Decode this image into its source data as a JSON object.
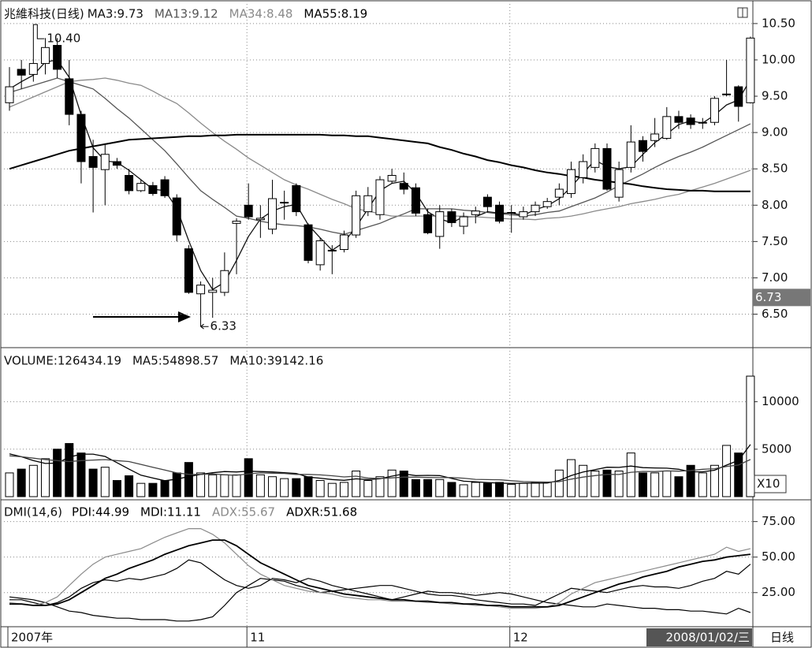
{
  "chart_data": [
    {
      "type": "candlestick",
      "title": "兆維科技(日线)",
      "period": "日线",
      "categories": [
        "2007年",
        null,
        null,
        null,
        null,
        null,
        null,
        null,
        null,
        null,
        null,
        null,
        null,
        null,
        null,
        null,
        null,
        null,
        null,
        null,
        "11",
        null,
        null,
        null,
        null,
        null,
        null,
        null,
        null,
        null,
        null,
        null,
        null,
        null,
        null,
        null,
        null,
        null,
        null,
        null,
        null,
        null,
        "12",
        null,
        null,
        null,
        null,
        null,
        null,
        null,
        null,
        null,
        null,
        null,
        null,
        null,
        null,
        null,
        null,
        null,
        null,
        null,
        "2008/01/02/三"
      ],
      "open": [
        9.41,
        9.87,
        9.8,
        9.95,
        10.2,
        9.74,
        9.25,
        8.67,
        8.49,
        8.6,
        8.41,
        8.2,
        8.27,
        8.35,
        8.1,
        7.4,
        6.78,
        6.8,
        6.8,
        7.75,
        8.0,
        7.8,
        7.67,
        8.03,
        8.27,
        7.73,
        7.18,
        7.37,
        7.39,
        7.59,
        7.91,
        7.87,
        8.33,
        8.3,
        8.24,
        7.87,
        7.57,
        7.91,
        7.71,
        7.87,
        8.11,
        8.0,
        7.89,
        7.84,
        7.91,
        7.98,
        8.11,
        8.16,
        8.38,
        8.52,
        8.78,
        8.11,
        8.52,
        8.89,
        8.89,
        8.92,
        9.22,
        9.2,
        9.13,
        9.14,
        9.52,
        9.63,
        9.41
      ],
      "high": [
        9.9,
        10.0,
        10.4,
        10.3,
        10.3,
        10.0,
        9.3,
        8.9,
        8.85,
        8.65,
        8.5,
        8.35,
        8.32,
        8.4,
        8.15,
        7.45,
        6.95,
        7.0,
        7.35,
        7.82,
        8.3,
        8.0,
        8.35,
        8.2,
        8.3,
        7.75,
        7.55,
        7.45,
        7.65,
        8.2,
        8.25,
        8.4,
        8.5,
        8.45,
        8.3,
        7.95,
        8.0,
        7.95,
        7.9,
        7.98,
        8.15,
        8.05,
        8.0,
        7.98,
        8.05,
        8.1,
        8.3,
        8.6,
        8.7,
        8.85,
        8.85,
        8.6,
        9.1,
        8.95,
        9.2,
        9.35,
        9.3,
        9.25,
        9.2,
        9.5,
        10.0,
        9.65,
        10.32
      ],
      "low": [
        9.3,
        9.6,
        9.7,
        9.8,
        9.75,
        9.1,
        8.3,
        7.9,
        8.0,
        8.5,
        8.15,
        8.18,
        8.13,
        8.1,
        7.5,
        6.78,
        6.33,
        6.45,
        6.75,
        7.05,
        7.8,
        7.55,
        7.6,
        7.8,
        7.85,
        7.2,
        7.1,
        7.05,
        7.35,
        7.55,
        7.85,
        7.8,
        8.3,
        8.15,
        7.85,
        7.6,
        7.4,
        7.7,
        7.6,
        7.75,
        7.9,
        7.75,
        7.62,
        7.8,
        7.85,
        7.95,
        8.0,
        8.1,
        8.3,
        8.45,
        8.2,
        8.05,
        8.45,
        8.6,
        8.8,
        8.9,
        9.05,
        9.05,
        9.05,
        9.1,
        9.5,
        9.15,
        9.4
      ],
      "close": [
        9.63,
        9.79,
        9.95,
        10.17,
        9.87,
        9.25,
        8.6,
        8.52,
        8.7,
        8.55,
        8.2,
        8.3,
        8.16,
        8.13,
        7.59,
        6.8,
        6.9,
        6.83,
        7.1,
        7.78,
        7.84,
        7.82,
        8.09,
        8.04,
        7.91,
        7.24,
        7.51,
        7.38,
        7.59,
        8.13,
        8.13,
        8.35,
        8.41,
        8.22,
        7.89,
        7.62,
        7.91,
        7.76,
        7.84,
        7.92,
        7.98,
        7.78,
        7.9,
        7.91,
        8.0,
        8.05,
        8.22,
        8.49,
        8.6,
        8.78,
        8.22,
        8.49,
        8.87,
        8.74,
        8.98,
        9.22,
        9.14,
        9.11,
        9.14,
        9.47,
        9.53,
        9.36,
        10.3
      ],
      "up_color": "#ffffff",
      "down_color": "#000000",
      "series": [
        {
          "name": "MA3:9.73",
          "color": "#111111",
          "values": [
            9.6,
            9.7,
            9.79,
            9.97,
            10.0,
            9.76,
            9.24,
            8.79,
            8.61,
            8.59,
            8.48,
            8.35,
            8.22,
            8.2,
            7.96,
            7.51,
            7.1,
            6.84,
            6.94,
            7.24,
            7.57,
            7.81,
            7.92,
            7.98,
            8.01,
            7.73,
            7.55,
            7.38,
            7.49,
            7.7,
            7.95,
            8.2,
            8.3,
            8.33,
            8.17,
            7.91,
            7.81,
            7.76,
            7.84,
            7.84,
            7.91,
            7.89,
            7.89,
            7.86,
            7.94,
            7.99,
            8.09,
            8.25,
            8.44,
            8.62,
            8.53,
            8.5,
            8.53,
            8.7,
            8.86,
            8.98,
            9.11,
            9.16,
            9.13,
            9.24,
            9.38,
            9.45,
            9.73
          ]
        },
        {
          "name": "MA13:9.12",
          "color": "#555555",
          "values": [
            9.55,
            9.6,
            9.65,
            9.7,
            9.75,
            9.7,
            9.65,
            9.6,
            9.47,
            9.33,
            9.2,
            9.05,
            8.9,
            8.75,
            8.57,
            8.38,
            8.2,
            8.08,
            7.97,
            7.85,
            7.82,
            7.78,
            7.75,
            7.73,
            7.72,
            7.7,
            7.67,
            7.63,
            7.6,
            7.65,
            7.7,
            7.75,
            7.82,
            7.88,
            7.95,
            7.95,
            7.95,
            7.95,
            7.93,
            7.92,
            7.9,
            7.88,
            7.87,
            7.85,
            7.87,
            7.9,
            7.92,
            7.98,
            8.04,
            8.1,
            8.18,
            8.27,
            8.35,
            8.43,
            8.52,
            8.6,
            8.67,
            8.73,
            8.8,
            8.88,
            8.96,
            9.04,
            9.12
          ]
        },
        {
          "name": "MA34:8.48",
          "color": "#8a8a8a",
          "values": [
            9.35,
            9.42,
            9.49,
            9.56,
            9.63,
            9.7,
            9.72,
            9.73,
            9.75,
            9.72,
            9.68,
            9.65,
            9.57,
            9.48,
            9.4,
            9.27,
            9.13,
            9.0,
            8.88,
            8.77,
            8.65,
            8.55,
            8.45,
            8.35,
            8.28,
            8.22,
            8.15,
            8.08,
            8.02,
            7.95,
            7.92,
            7.88,
            7.85,
            7.85,
            7.85,
            7.85,
            7.85,
            7.85,
            7.85,
            7.84,
            7.83,
            7.82,
            7.81,
            7.81,
            7.8,
            7.82,
            7.83,
            7.85,
            7.88,
            7.92,
            7.95,
            7.98,
            8.02,
            8.05,
            8.08,
            8.12,
            8.15,
            8.2,
            8.25,
            8.3,
            8.36,
            8.42,
            8.48
          ]
        },
        {
          "name": "MA55:8.19",
          "color": "#000000",
          "values": [
            8.5,
            8.55,
            8.6,
            8.65,
            8.7,
            8.75,
            8.78,
            8.81,
            8.84,
            8.87,
            8.9,
            8.91,
            8.92,
            8.93,
            8.94,
            8.95,
            8.95,
            8.96,
            8.96,
            8.97,
            8.97,
            8.97,
            8.97,
            8.97,
            8.97,
            8.97,
            8.97,
            8.96,
            8.96,
            8.95,
            8.95,
            8.93,
            8.91,
            8.89,
            8.87,
            8.85,
            8.8,
            8.76,
            8.71,
            8.67,
            8.62,
            8.59,
            8.55,
            8.52,
            8.48,
            8.45,
            8.43,
            8.4,
            8.38,
            8.35,
            8.33,
            8.31,
            8.29,
            8.26,
            8.24,
            8.22,
            8.21,
            8.2,
            8.2,
            8.19,
            8.19,
            8.19,
            8.19
          ]
        }
      ],
      "annotations": [
        {
          "value": 10.4,
          "label": "10.40"
        },
        {
          "value": 6.33,
          "label": "6.33"
        }
      ],
      "price_marker": {
        "value": 6.73,
        "label": "6.73"
      },
      "ylim": [
        6.05,
        10.77
      ],
      "yticks": [
        {
          "value": 6.5,
          "label": "6.50"
        },
        {
          "value": 7.0,
          "label": "7.00"
        },
        {
          "value": 7.5,
          "label": "7.50"
        },
        {
          "value": 8.0,
          "label": "8.00"
        },
        {
          "value": 8.5,
          "label": "8.50"
        },
        {
          "value": 9.0,
          "label": "9.00"
        },
        {
          "value": 9.5,
          "label": "9.50"
        },
        {
          "value": 10.0,
          "label": "10.00"
        },
        {
          "value": 10.5,
          "label": "10.50"
        }
      ],
      "grid": true
    },
    {
      "type": "bar",
      "unit_label": "X10",
      "values": [
        2500,
        2900,
        3300,
        4000,
        5000,
        5600,
        4600,
        2900,
        3100,
        1700,
        2200,
        1400,
        1400,
        1700,
        2500,
        3600,
        2500,
        2300,
        2300,
        2300,
        4000,
        2300,
        2100,
        1900,
        1900,
        2100,
        1700,
        1400,
        1500,
        2700,
        1700,
        2100,
        2800,
        2700,
        1800,
        1800,
        1800,
        1500,
        1250,
        1500,
        1400,
        1500,
        1300,
        1400,
        1500,
        1500,
        2800,
        3900,
        3300,
        2700,
        2800,
        2700,
        4600,
        2500,
        2500,
        2700,
        2100,
        3300,
        2500,
        3300,
        5400,
        4600,
        12700
      ],
      "value_name": "VOLUME:126434.19",
      "series": [
        {
          "name": "MA5:54898.57",
          "color": "#000000",
          "values": [
            4500,
            4200,
            3800,
            3500,
            3540,
            4160,
            4480,
            4480,
            4240,
            3580,
            2900,
            2260,
            1960,
            1680,
            1840,
            2120,
            2340,
            2520,
            2640,
            2600,
            2680,
            2640,
            2600,
            2520,
            2440,
            2060,
            1940,
            1800,
            1720,
            1880,
            1800,
            1880,
            2160,
            2400,
            2220,
            2240,
            2220,
            1920,
            1630,
            1570,
            1490,
            1430,
            1390,
            1420,
            1420,
            1440,
            1700,
            2220,
            2600,
            2840,
            3100,
            3080,
            3220,
            3060,
            3020,
            3000,
            2880,
            2620,
            2620,
            2780,
            3320,
            3820,
            5490
          ]
        },
        {
          "name": "MA10:39142.16",
          "color": "#444444",
          "values": [
            4300,
            4200,
            4050,
            3900,
            3800,
            3700,
            3800,
            3850,
            3900,
            3800,
            3700,
            3400,
            3100,
            2800,
            2500,
            2350,
            2340,
            2400,
            2300,
            2250,
            2400,
            2500,
            2470,
            2440,
            2340,
            2340,
            2290,
            2200,
            2080,
            2160,
            1960,
            1910,
            1980,
            2060,
            2050,
            2020,
            2000,
            2010,
            1940,
            1820,
            1790,
            1780,
            1680,
            1590,
            1550,
            1540,
            1580,
            1840,
            2060,
            2220,
            2340,
            2330,
            2570,
            2660,
            2640,
            2720,
            2680,
            2750,
            2880,
            2940,
            3180,
            3330,
            3914
          ]
        }
      ],
      "ylim": [
        0,
        15200
      ],
      "yticks": [
        5000,
        10000
      ],
      "grid": true
    },
    {
      "type": "line",
      "title": "DMI(14,6)",
      "series": [
        {
          "name": "PDI:44.99",
          "color": "#000000",
          "values": [
            22,
            21,
            20,
            18,
            15,
            12,
            11,
            9,
            8,
            7,
            7,
            6,
            6,
            6,
            5,
            5,
            6,
            8,
            16,
            25,
            30,
            35,
            34,
            33,
            30,
            28,
            25,
            26,
            27,
            28,
            29,
            30,
            30,
            28,
            26,
            24,
            23,
            23,
            22,
            20,
            19,
            18,
            17,
            17,
            16,
            20,
            24,
            28,
            27,
            26,
            25,
            27,
            29,
            30,
            29,
            29,
            28,
            30,
            33,
            35,
            40,
            38,
            45
          ]
        },
        {
          "name": "MDI:11.11",
          "color": "#000000",
          "values": [
            20,
            20,
            18,
            16,
            18,
            22,
            28,
            32,
            34,
            33,
            35,
            34,
            36,
            38,
            42,
            48,
            46,
            40,
            34,
            30,
            28,
            30,
            35,
            34,
            32,
            35,
            33,
            30,
            28,
            26,
            24,
            22,
            20,
            22,
            24,
            26,
            25,
            25,
            24,
            23,
            24,
            25,
            24,
            22,
            20,
            18,
            17,
            16,
            15,
            15,
            17,
            16,
            15,
            14,
            14,
            13,
            13,
            12,
            12,
            11,
            10,
            14,
            11
          ]
        },
        {
          "name": "ADX:55.67",
          "color": "#8a8a8a",
          "values": [
            18,
            17,
            16,
            18,
            22,
            30,
            38,
            45,
            50,
            52,
            54,
            56,
            60,
            64,
            67,
            70,
            70,
            66,
            60,
            52,
            44,
            38,
            34,
            30,
            28,
            26,
            25,
            24,
            22,
            21,
            20,
            20,
            19,
            19,
            19,
            18,
            18,
            17,
            17,
            16,
            16,
            15,
            14,
            14,
            14,
            15,
            18,
            24,
            28,
            32,
            34,
            36,
            38,
            40,
            42,
            44,
            46,
            48,
            50,
            52,
            57,
            54,
            56
          ]
        },
        {
          "name": "ADXR:51.68",
          "color": "#000000",
          "values": [
            17,
            17,
            16,
            16,
            17,
            20,
            25,
            30,
            35,
            38,
            42,
            45,
            48,
            52,
            55,
            58,
            60,
            62,
            62,
            58,
            52,
            46,
            42,
            38,
            34,
            30,
            28,
            26,
            24,
            23,
            22,
            21,
            20,
            20,
            19,
            19,
            18,
            18,
            17,
            17,
            16,
            16,
            15,
            15,
            15,
            15,
            16,
            19,
            22,
            25,
            28,
            31,
            33,
            36,
            38,
            40,
            43,
            45,
            47,
            48,
            50,
            51,
            52
          ]
        }
      ],
      "ylim": [
        1,
        87
      ],
      "yticks": [
        {
          "value": 25,
          "label": "25.00"
        },
        {
          "value": 50,
          "label": "50.00"
        },
        {
          "value": 75,
          "label": "75.00"
        }
      ],
      "grid": true
    }
  ]
}
